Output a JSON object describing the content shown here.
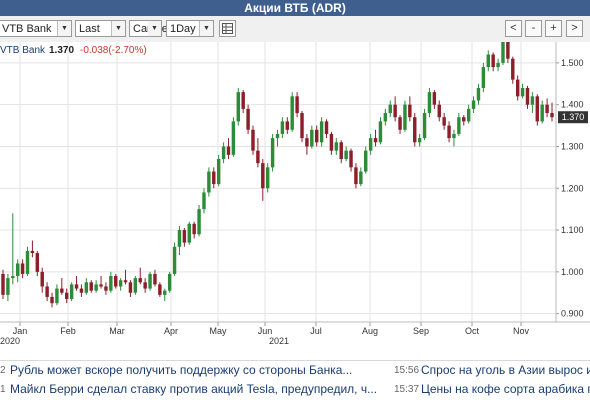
{
  "window": {
    "title": "Акции ВТБ (ADR)"
  },
  "toolbar": {
    "instrument": "VTB Bank",
    "price_type": "Last",
    "chart_type": "Candle",
    "interval": "1Day",
    "buttons": [
      "<",
      "-",
      "+",
      ">"
    ]
  },
  "legend": {
    "name": "VTB Bank",
    "last": "1.370",
    "change": "-0.038(-2.70%)"
  },
  "colors": {
    "title_bg": "#3f5f8f",
    "up": "#2e8b3a",
    "down": "#8b1f2a",
    "price_tag": "#333333"
  },
  "chart_data": {
    "type": "candlestick",
    "price_tag": "1.370",
    "y_ticks": [
      "1.500",
      "1.400",
      "1.300",
      "1.200",
      "1.100",
      "1.000",
      "0.900"
    ],
    "ylim": [
      0.88,
      1.55
    ],
    "x_ticks": [
      "Jan",
      "Feb",
      "Mar",
      "Apr",
      "May",
      "Jun",
      "Jul",
      "Aug",
      "Sep",
      "Oct",
      "Nov"
    ],
    "year_labels": [
      "2020",
      "2021"
    ],
    "grid": true,
    "ohlc": [
      [
        0.995,
        1.005,
        0.935,
        0.945
      ],
      [
        0.945,
        0.995,
        0.93,
        0.985
      ],
      [
        0.985,
        1.14,
        0.97,
        0.99
      ],
      [
        0.99,
        1.03,
        0.975,
        1.02
      ],
      [
        1.02,
        1.03,
        0.985,
        0.995
      ],
      [
        0.995,
        1.06,
        0.99,
        1.05
      ],
      [
        1.05,
        1.075,
        1.035,
        1.045
      ],
      [
        1.045,
        1.05,
        0.99,
        1.0
      ],
      [
        1.0,
        1.01,
        0.95,
        0.965
      ],
      [
        0.965,
        0.975,
        0.93,
        0.94
      ],
      [
        0.94,
        0.95,
        0.915,
        0.925
      ],
      [
        0.925,
        0.97,
        0.92,
        0.96
      ],
      [
        0.96,
        0.985,
        0.945,
        0.95
      ],
      [
        0.95,
        0.96,
        0.925,
        0.935
      ],
      [
        0.935,
        0.975,
        0.93,
        0.97
      ],
      [
        0.97,
        0.99,
        0.955,
        0.96
      ],
      [
        0.96,
        0.97,
        0.94,
        0.95
      ],
      [
        0.95,
        0.985,
        0.945,
        0.975
      ],
      [
        0.975,
        0.98,
        0.95,
        0.955
      ],
      [
        0.955,
        0.98,
        0.95,
        0.97
      ],
      [
        0.97,
        0.99,
        0.96,
        0.965
      ],
      [
        0.965,
        0.975,
        0.945,
        0.955
      ],
      [
        0.955,
        1.0,
        0.95,
        0.99
      ],
      [
        0.99,
        0.995,
        0.96,
        0.965
      ],
      [
        0.965,
        0.985,
        0.955,
        0.98
      ],
      [
        0.98,
        1.005,
        0.97,
        0.975
      ],
      [
        0.975,
        0.98,
        0.94,
        0.95
      ],
      [
        0.95,
        0.99,
        0.945,
        0.985
      ],
      [
        0.985,
        1.01,
        0.97,
        0.975
      ],
      [
        0.975,
        0.985,
        0.95,
        0.96
      ],
      [
        0.96,
        1.0,
        0.955,
        0.995
      ],
      [
        0.995,
        1.005,
        0.965,
        0.97
      ],
      [
        0.97,
        0.975,
        0.94,
        0.945
      ],
      [
        0.945,
        0.96,
        0.93,
        0.955
      ],
      [
        0.955,
        1.0,
        0.95,
        0.995
      ],
      [
        0.995,
        1.07,
        0.99,
        1.06
      ],
      [
        1.06,
        1.11,
        1.04,
        1.1
      ],
      [
        1.1,
        1.105,
        1.06,
        1.07
      ],
      [
        1.07,
        1.12,
        1.065,
        1.115
      ],
      [
        1.115,
        1.12,
        1.08,
        1.09
      ],
      [
        1.09,
        1.16,
        1.085,
        1.15
      ],
      [
        1.15,
        1.2,
        1.14,
        1.19
      ],
      [
        1.19,
        1.25,
        1.18,
        1.24
      ],
      [
        1.24,
        1.25,
        1.2,
        1.21
      ],
      [
        1.21,
        1.28,
        1.205,
        1.27
      ],
      [
        1.27,
        1.31,
        1.26,
        1.3
      ],
      [
        1.3,
        1.32,
        1.27,
        1.28
      ],
      [
        1.28,
        1.37,
        1.275,
        1.36
      ],
      [
        1.36,
        1.44,
        1.35,
        1.43
      ],
      [
        1.43,
        1.435,
        1.38,
        1.39
      ],
      [
        1.39,
        1.4,
        1.33,
        1.34
      ],
      [
        1.34,
        1.35,
        1.28,
        1.29
      ],
      [
        1.29,
        1.32,
        1.25,
        1.26
      ],
      [
        1.26,
        1.27,
        1.17,
        1.2
      ],
      [
        1.2,
        1.26,
        1.19,
        1.25
      ],
      [
        1.25,
        1.33,
        1.24,
        1.32
      ],
      [
        1.32,
        1.34,
        1.3,
        1.33
      ],
      [
        1.33,
        1.37,
        1.32,
        1.36
      ],
      [
        1.36,
        1.37,
        1.33,
        1.34
      ],
      [
        1.34,
        1.43,
        1.335,
        1.42
      ],
      [
        1.42,
        1.43,
        1.37,
        1.38
      ],
      [
        1.38,
        1.385,
        1.31,
        1.32
      ],
      [
        1.32,
        1.33,
        1.28,
        1.3
      ],
      [
        1.3,
        1.35,
        1.295,
        1.34
      ],
      [
        1.34,
        1.35,
        1.3,
        1.31
      ],
      [
        1.31,
        1.37,
        1.3,
        1.36
      ],
      [
        1.36,
        1.365,
        1.32,
        1.33
      ],
      [
        1.33,
        1.335,
        1.28,
        1.29
      ],
      [
        1.29,
        1.32,
        1.28,
        1.31
      ],
      [
        1.31,
        1.315,
        1.26,
        1.27
      ],
      [
        1.27,
        1.3,
        1.265,
        1.29
      ],
      [
        1.29,
        1.295,
        1.24,
        1.25
      ],
      [
        1.25,
        1.26,
        1.2,
        1.21
      ],
      [
        1.21,
        1.25,
        1.205,
        1.24
      ],
      [
        1.24,
        1.3,
        1.235,
        1.29
      ],
      [
        1.29,
        1.33,
        1.28,
        1.32
      ],
      [
        1.32,
        1.34,
        1.3,
        1.31
      ],
      [
        1.31,
        1.37,
        1.305,
        1.36
      ],
      [
        1.36,
        1.39,
        1.35,
        1.38
      ],
      [
        1.38,
        1.41,
        1.37,
        1.4
      ],
      [
        1.4,
        1.42,
        1.36,
        1.37
      ],
      [
        1.37,
        1.375,
        1.33,
        1.34
      ],
      [
        1.34,
        1.41,
        1.335,
        1.4
      ],
      [
        1.4,
        1.42,
        1.36,
        1.37
      ],
      [
        1.37,
        1.38,
        1.3,
        1.31
      ],
      [
        1.31,
        1.33,
        1.3,
        1.32
      ],
      [
        1.32,
        1.39,
        1.315,
        1.38
      ],
      [
        1.38,
        1.44,
        1.37,
        1.43
      ],
      [
        1.43,
        1.435,
        1.39,
        1.4
      ],
      [
        1.4,
        1.41,
        1.36,
        1.37
      ],
      [
        1.37,
        1.38,
        1.34,
        1.35
      ],
      [
        1.35,
        1.36,
        1.31,
        1.32
      ],
      [
        1.32,
        1.34,
        1.3,
        1.33
      ],
      [
        1.33,
        1.38,
        1.325,
        1.37
      ],
      [
        1.37,
        1.375,
        1.35,
        1.36
      ],
      [
        1.36,
        1.4,
        1.355,
        1.39
      ],
      [
        1.39,
        1.42,
        1.38,
        1.41
      ],
      [
        1.41,
        1.45,
        1.4,
        1.44
      ],
      [
        1.44,
        1.5,
        1.43,
        1.49
      ],
      [
        1.49,
        1.53,
        1.48,
        1.52
      ],
      [
        1.52,
        1.525,
        1.48,
        1.49
      ],
      [
        1.49,
        1.51,
        1.48,
        1.5
      ],
      [
        1.5,
        1.56,
        1.495,
        1.55
      ],
      [
        1.55,
        1.565,
        1.5,
        1.51
      ],
      [
        1.51,
        1.515,
        1.45,
        1.46
      ],
      [
        1.46,
        1.47,
        1.41,
        1.42
      ],
      [
        1.42,
        1.45,
        1.415,
        1.44
      ],
      [
        1.44,
        1.445,
        1.39,
        1.4
      ],
      [
        1.4,
        1.43,
        1.38,
        1.42
      ],
      [
        1.42,
        1.425,
        1.35,
        1.36
      ],
      [
        1.36,
        1.41,
        1.355,
        1.4
      ],
      [
        1.4,
        1.415,
        1.37,
        1.38
      ],
      [
        1.38,
        1.405,
        1.36,
        1.37
      ]
    ]
  },
  "news": [
    {
      "time": "",
      "text": "Рубль может вскоре получить поддержку со стороны Банка..."
    },
    {
      "time": "",
      "text": "Майкл Берри сделал ставку против акций Tesla, предупредил, ч..."
    },
    {
      "time": "15:56",
      "text": "Спрос на уголь в Азии вырос и"
    },
    {
      "time": "15:37",
      "text": "Цены на кофе сорта арабика п"
    }
  ],
  "news_prefixes": [
    "2",
    "1"
  ]
}
